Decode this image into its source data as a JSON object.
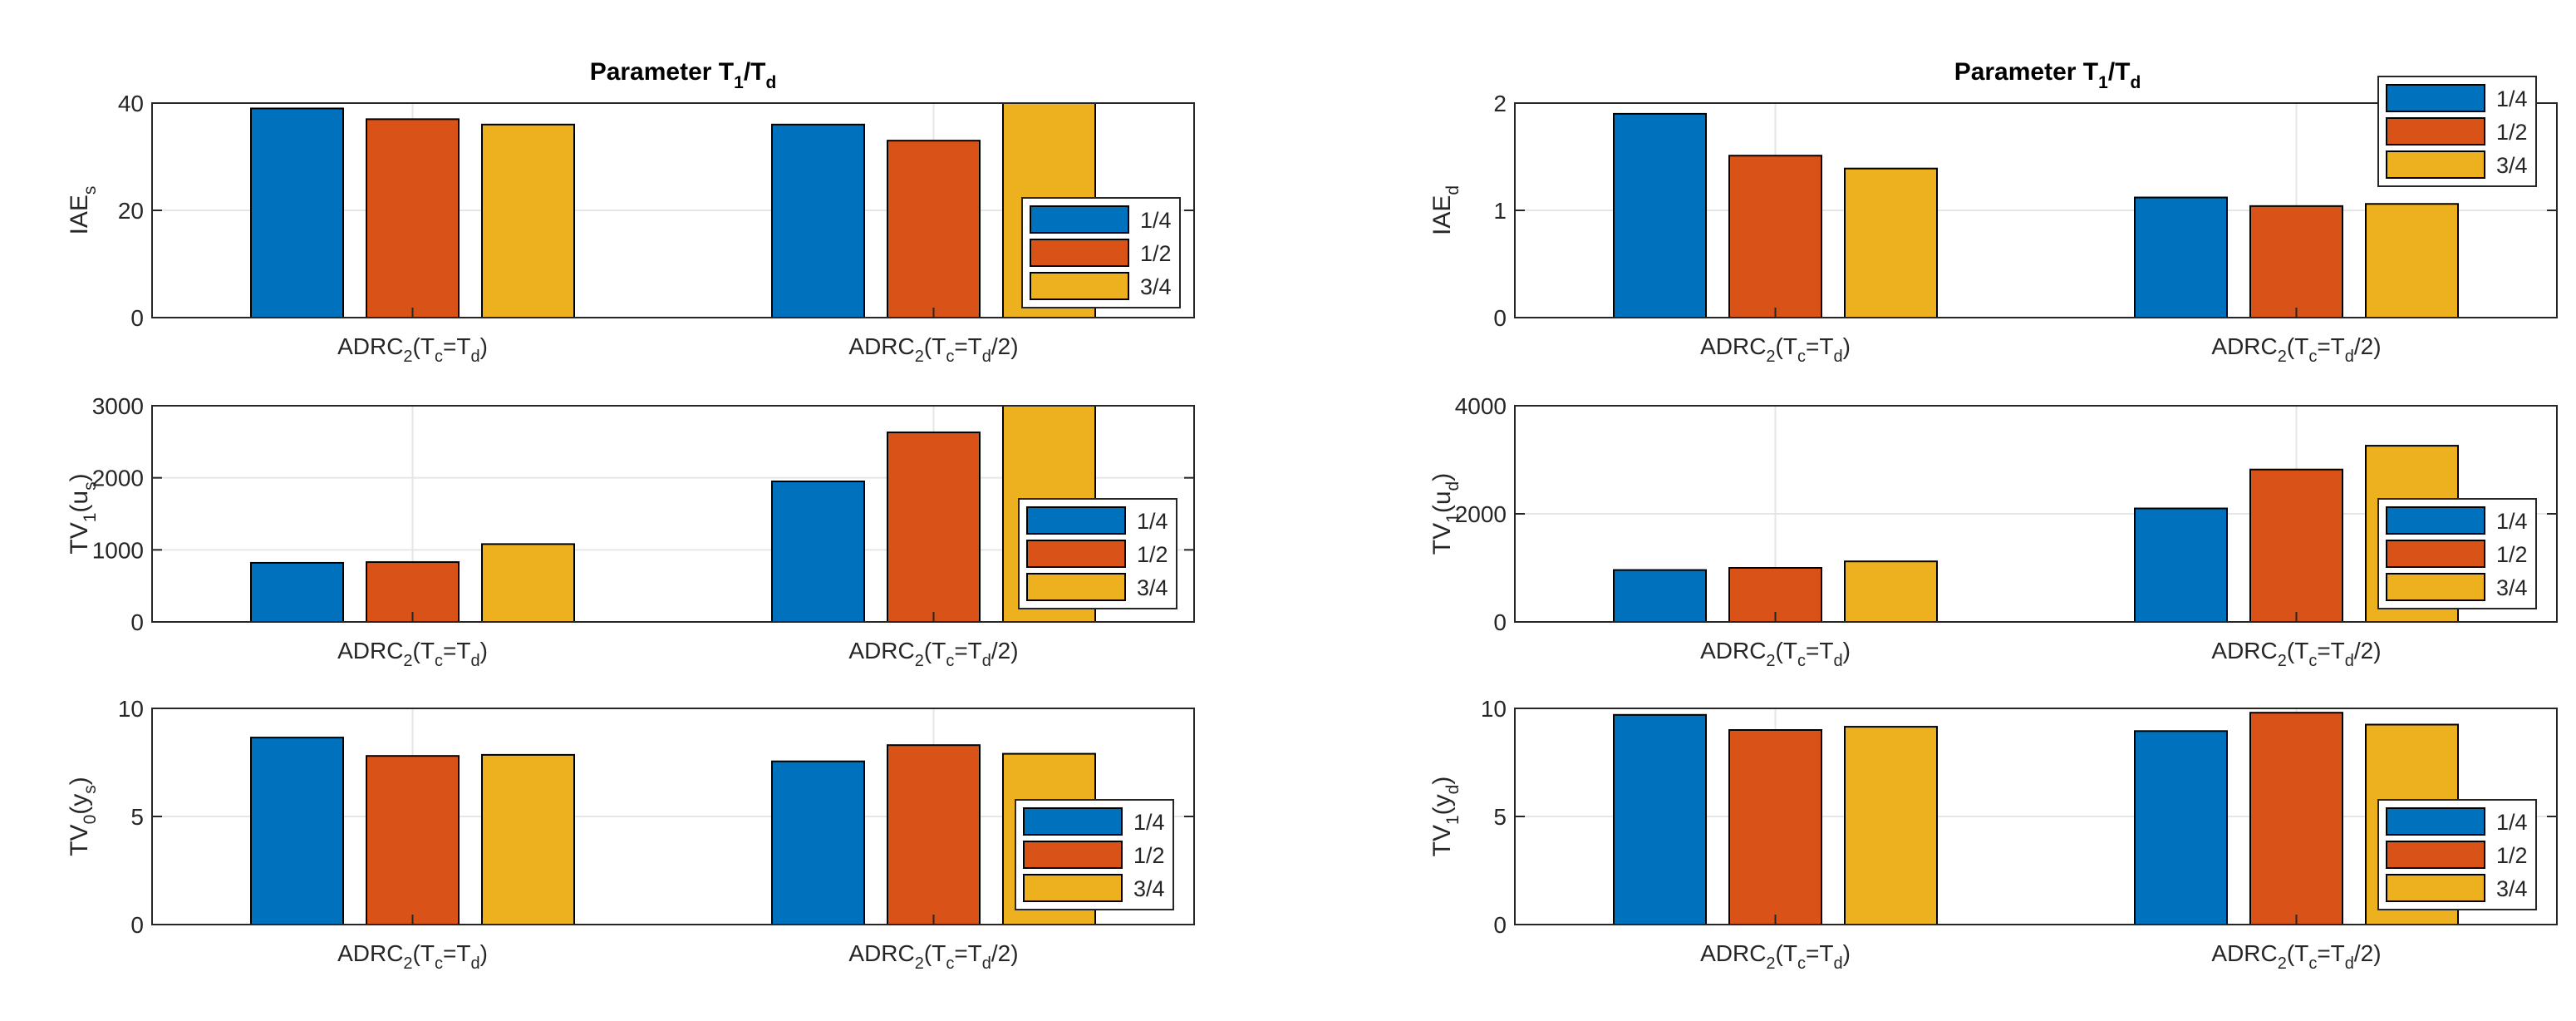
{
  "figure": {
    "title_left": {
      "main": "Parameter T",
      "sub1": "1",
      "slash": "/T",
      "sub2": "d"
    },
    "title_right": {
      "main": "Parameter T",
      "sub1": "1",
      "slash": "/T",
      "sub2": "d"
    }
  },
  "colors": {
    "s1": "#0072BD",
    "s2": "#D95319",
    "s3": "#EDB120",
    "grid": "#e6e6e6",
    "axis": "#262626"
  },
  "chart_data": [
    {
      "type": "bar",
      "id": "iae-s",
      "ylabel": {
        "base": "IAE",
        "sub": "s"
      },
      "ylim": [
        0,
        40
      ],
      "yticks": [
        0,
        20,
        40
      ],
      "categories": [
        {
          "base": "ADRC",
          "sub": "2",
          "mid": "(T",
          "sub2": "c",
          "mid2": "=T",
          "sub3": "d",
          "end": ")"
        },
        {
          "base": "ADRC",
          "sub": "2",
          "mid": "(T",
          "sub2": "c",
          "mid2": "=T",
          "sub3": "d",
          "end": "/2)"
        }
      ],
      "series": [
        {
          "name": "1/4",
          "values": [
            39,
            36
          ]
        },
        {
          "name": "1/2",
          "values": [
            37,
            33
          ]
        },
        {
          "name": "3/4",
          "values": [
            36,
            40.5
          ]
        }
      ],
      "legend_position": "middle-right"
    },
    {
      "type": "bar",
      "id": "iae-d",
      "ylabel": {
        "base": "IAE",
        "sub": "d"
      },
      "ylim": [
        0,
        2
      ],
      "yticks": [
        0,
        1,
        2
      ],
      "categories": [
        {
          "base": "ADRC",
          "sub": "2",
          "mid": "(T",
          "sub2": "c",
          "mid2": "=T",
          "sub3": "d",
          "end": ")"
        },
        {
          "base": "ADRC",
          "sub": "2",
          "mid": "(T",
          "sub2": "c",
          "mid2": "=T",
          "sub3": "d",
          "end": "/2)"
        }
      ],
      "series": [
        {
          "name": "1/4",
          "values": [
            1.9,
            1.12
          ]
        },
        {
          "name": "1/2",
          "values": [
            1.51,
            1.04
          ]
        },
        {
          "name": "3/4",
          "values": [
            1.39,
            1.06
          ]
        }
      ],
      "legend_position": "top-right"
    },
    {
      "type": "bar",
      "id": "tv1-us",
      "ylabel": {
        "base": "TV",
        "sub": "1",
        "mid": "(u",
        "sub2": "s",
        "end": ")"
      },
      "ylim": [
        0,
        3000
      ],
      "yticks": [
        0,
        1000,
        2000,
        3000
      ],
      "categories": [
        {
          "base": "ADRC",
          "sub": "2",
          "mid": "(T",
          "sub2": "c",
          "mid2": "=T",
          "sub3": "d",
          "end": ")"
        },
        {
          "base": "ADRC",
          "sub": "2",
          "mid": "(T",
          "sub2": "c",
          "mid2": "=T",
          "sub3": "d",
          "end": "/2)"
        }
      ],
      "series": [
        {
          "name": "1/4",
          "values": [
            820,
            1950
          ]
        },
        {
          "name": "1/2",
          "values": [
            830,
            2630
          ]
        },
        {
          "name": "3/4",
          "values": [
            1080,
            3000
          ]
        }
      ],
      "legend_position": "middle-right"
    },
    {
      "type": "bar",
      "id": "tv1-ud",
      "ylabel": {
        "base": "TV",
        "sub": "1",
        "mid": "(u",
        "sub2": "d",
        "end": ")"
      },
      "ylim": [
        0,
        4000
      ],
      "yticks": [
        0,
        2000,
        4000
      ],
      "categories": [
        {
          "base": "ADRC",
          "sub": "2",
          "mid": "(T",
          "sub2": "c",
          "mid2": "=T",
          "sub3": "d",
          "end": ")"
        },
        {
          "base": "ADRC",
          "sub": "2",
          "mid": "(T",
          "sub2": "c",
          "mid2": "=T",
          "sub3": "d",
          "end": "/2)"
        }
      ],
      "series": [
        {
          "name": "1/4",
          "values": [
            960,
            2100
          ]
        },
        {
          "name": "1/2",
          "values": [
            1000,
            2820
          ]
        },
        {
          "name": "3/4",
          "values": [
            1120,
            3260
          ]
        }
      ],
      "legend_position": "middle-right"
    },
    {
      "type": "bar",
      "id": "tv0-ys",
      "ylabel": {
        "base": "TV",
        "sub": "0",
        "mid": "(y",
        "sub2": "s",
        "end": ")"
      },
      "ylim": [
        0,
        10
      ],
      "yticks": [
        0,
        5,
        10
      ],
      "categories": [
        {
          "base": "ADRC",
          "sub": "2",
          "mid": "(T",
          "sub2": "c",
          "mid2": "=T",
          "sub3": "d",
          "end": ")"
        },
        {
          "base": "ADRC",
          "sub": "2",
          "mid": "(T",
          "sub2": "c",
          "mid2": "=T",
          "sub3": "d",
          "end": "/2)"
        }
      ],
      "series": [
        {
          "name": "1/4",
          "values": [
            8.65,
            7.55
          ]
        },
        {
          "name": "1/2",
          "values": [
            7.8,
            8.3
          ]
        },
        {
          "name": "3/4",
          "values": [
            7.85,
            7.9
          ]
        }
      ],
      "legend_position": "middle-right"
    },
    {
      "type": "bar",
      "id": "tv1-yd",
      "ylabel": {
        "base": "TV",
        "sub": "1",
        "mid": "(y",
        "sub2": "d",
        "end": ")"
      },
      "ylim": [
        0,
        10
      ],
      "yticks": [
        0,
        5,
        10
      ],
      "categories": [
        {
          "base": "ADRC",
          "sub": "2",
          "mid": "(T",
          "sub2": "c",
          "mid2": "=T",
          "sub3": "d",
          "end": ")"
        },
        {
          "base": "ADRC",
          "sub": "2",
          "mid": "(T",
          "sub2": "c",
          "mid2": "=T",
          "sub3": "d",
          "end": "/2)"
        }
      ],
      "series": [
        {
          "name": "1/4",
          "values": [
            9.7,
            8.95
          ]
        },
        {
          "name": "1/2",
          "values": [
            9.0,
            9.8
          ]
        },
        {
          "name": "3/4",
          "values": [
            9.15,
            9.25
          ]
        }
      ],
      "legend_position": "middle-right"
    }
  ]
}
